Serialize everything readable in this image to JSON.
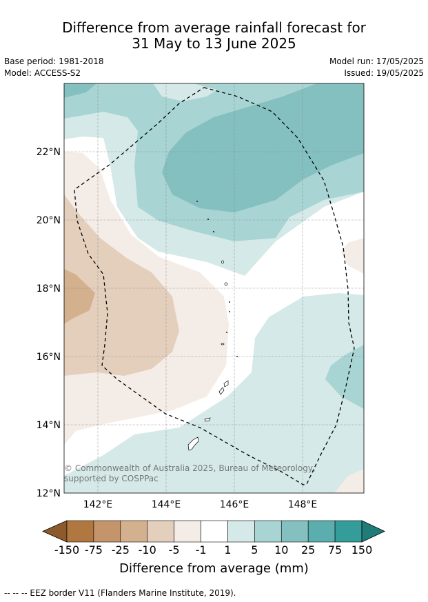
{
  "title": {
    "line1": "Difference from average rainfall forecast for",
    "line2": "31 May to 13 June 2025"
  },
  "meta": {
    "base_period": "Base period: 1981-2018",
    "model": "Model: ACCESS-S2",
    "model_run": "Model run: 17/05/2025",
    "issued": "Issued: 19/05/2025"
  },
  "axes": {
    "lat_labels": [
      "22°N",
      "20°N",
      "18°N",
      "16°N",
      "14°N",
      "12°N"
    ],
    "lon_labels": [
      "142°E",
      "144°E",
      "146°E",
      "148°E"
    ]
  },
  "copyright": "© Commonwealth of Australia 2025, Bureau of Meteorology, supported by COSPPac",
  "colorbar": {
    "tick_labels": [
      "-150",
      "-75",
      "-25",
      "-10",
      "-5",
      "-1",
      "1",
      "5",
      "10",
      "25",
      "75",
      "150"
    ],
    "colors": [
      "#8c5a2b",
      "#b07840",
      "#c4956a",
      "#d3b18f",
      "#e4cfbd",
      "#f4ece6",
      "#ffffff",
      "#d4e9e8",
      "#a8d4d3",
      "#84c0bf",
      "#5caeae",
      "#349c99",
      "#1f7c79"
    ],
    "title": "Difference from average (mm)"
  },
  "footnote": "--  --  -- EEZ border V11 (Flanders Marine Institute, 2019)."
}
